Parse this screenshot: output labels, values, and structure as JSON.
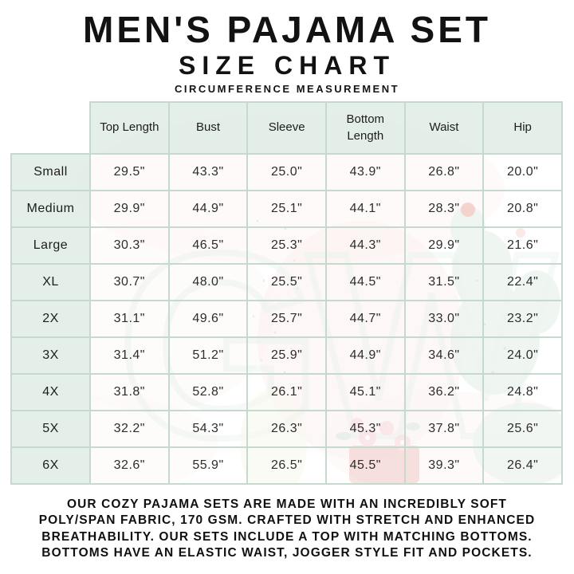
{
  "page": {
    "title": "MEN'S PAJAMA SET",
    "subtitle": "SIZE CHART",
    "measurement_note": "CIRCUMFERENCE MEASUREMENT"
  },
  "table": {
    "columns": [
      "Top Length",
      "Bust",
      "Sleeve",
      "Bottom Length",
      "Waist",
      "Hip"
    ],
    "rows": [
      {
        "size": "Small",
        "values": [
          "29.5\"",
          "43.3\"",
          "25.0\"",
          "43.9\"",
          "26.8\"",
          "20.0\""
        ]
      },
      {
        "size": "Medium",
        "values": [
          "29.9\"",
          "44.9\"",
          "25.1\"",
          "44.1\"",
          "28.3\"",
          "20.8\""
        ]
      },
      {
        "size": "Large",
        "values": [
          "30.3\"",
          "46.5\"",
          "25.3\"",
          "44.3\"",
          "29.9\"",
          "21.6\""
        ]
      },
      {
        "size": "XL",
        "values": [
          "30.7\"",
          "48.0\"",
          "25.5\"",
          "44.5\"",
          "31.5\"",
          "22.4\""
        ]
      },
      {
        "size": "2X",
        "values": [
          "31.1\"",
          "49.6\"",
          "25.7\"",
          "44.7\"",
          "33.0\"",
          "23.2\""
        ]
      },
      {
        "size": "3X",
        "values": [
          "31.4\"",
          "51.2\"",
          "25.9\"",
          "44.9\"",
          "34.6\"",
          "24.0\""
        ]
      },
      {
        "size": "4X",
        "values": [
          "31.8\"",
          "52.8\"",
          "26.1\"",
          "45.1\"",
          "36.2\"",
          "24.8\""
        ]
      },
      {
        "size": "5X",
        "values": [
          "32.2\"",
          "54.3\"",
          "26.3\"",
          "45.3\"",
          "37.8\"",
          "25.6\""
        ]
      },
      {
        "size": "6X",
        "values": [
          "32.6\"",
          "55.9\"",
          "26.5\"",
          "45.5\"",
          "39.3\"",
          "26.4\""
        ]
      }
    ]
  },
  "footer": {
    "lines": [
      "OUR COZY PAJAMA SETS ARE MADE WITH AN INCREDIBLY SOFT",
      "POLY/SPAN FABRIC, 170 GSM. CRAFTED WITH STRETCH AND ENHANCED",
      "BREATHABILITY. OUR SETS INCLUDE A TOP WITH MATCHING BOTTOMS.",
      "BOTTOMS HAVE AN ELASTIC WAIST, JOGGER STYLE FIT AND POCKETS."
    ]
  },
  "theme": {
    "table-border": "#c5d9cd",
    "header-bg": "rgba(226,238,231,0.93)",
    "cell-bg": "rgba(255,255,255,0.62)",
    "watermark-green": "#cfe2d6",
    "watermark-pink": "#f6d9d7",
    "watermark-red": "#dd6a5e",
    "ink": "#161616"
  },
  "chart_data": {
    "type": "table",
    "title": "Men's Pajama Set Size Chart",
    "subtitle": "Circumference measurement (inches)",
    "categories": [
      "Small",
      "Medium",
      "Large",
      "XL",
      "2X",
      "3X",
      "4X",
      "5X",
      "6X"
    ],
    "series": [
      {
        "name": "Top Length",
        "values": [
          29.5,
          29.9,
          30.3,
          30.7,
          31.1,
          31.4,
          31.8,
          32.2,
          32.6
        ]
      },
      {
        "name": "Bust",
        "values": [
          43.3,
          44.9,
          46.5,
          48.0,
          49.6,
          51.2,
          52.8,
          54.3,
          55.9
        ]
      },
      {
        "name": "Sleeve",
        "values": [
          25.0,
          25.1,
          25.3,
          25.5,
          25.7,
          25.9,
          26.1,
          26.3,
          26.5
        ]
      },
      {
        "name": "Bottom Length",
        "values": [
          43.9,
          44.1,
          44.3,
          44.5,
          44.7,
          44.9,
          45.1,
          45.3,
          45.5
        ]
      },
      {
        "name": "Waist",
        "values": [
          26.8,
          28.3,
          29.9,
          31.5,
          33.0,
          34.6,
          36.2,
          37.8,
          39.3
        ]
      },
      {
        "name": "Hip",
        "values": [
          20.0,
          20.8,
          21.6,
          22.4,
          23.2,
          24.0,
          24.8,
          25.6,
          26.4
        ]
      }
    ]
  }
}
